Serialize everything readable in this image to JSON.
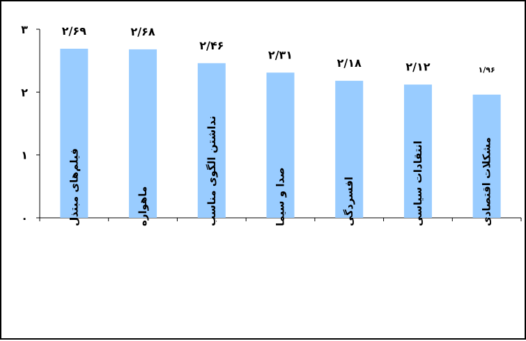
{
  "chart_data": {
    "type": "bar",
    "title": "",
    "xlabel": "",
    "ylabel": "",
    "categories": [
      "فیلم‌های مبتذل",
      "ماهواره",
      "نداشتن الگوی مناسب",
      "صدا و سیما",
      "افسردگی",
      "انتقادات سیاسی",
      "مشکلات اقتصادی"
    ],
    "values": [
      2.69,
      2.68,
      2.46,
      2.31,
      2.18,
      2.12,
      1.96
    ],
    "data_labels": [
      "۲/۶۹",
      "۲/۶۸",
      "۲/۴۶",
      "۲/۳۱",
      "۲/۱۸",
      "۲/۱۲",
      "۱/۹۶"
    ],
    "ylim": [
      0,
      3
    ],
    "y_ticks": [
      0,
      1,
      2,
      3
    ],
    "y_tick_labels": [
      "۰",
      "۱",
      "۲",
      "۳"
    ],
    "bar_color": "#99ccff",
    "grid": false,
    "legend": "none"
  }
}
